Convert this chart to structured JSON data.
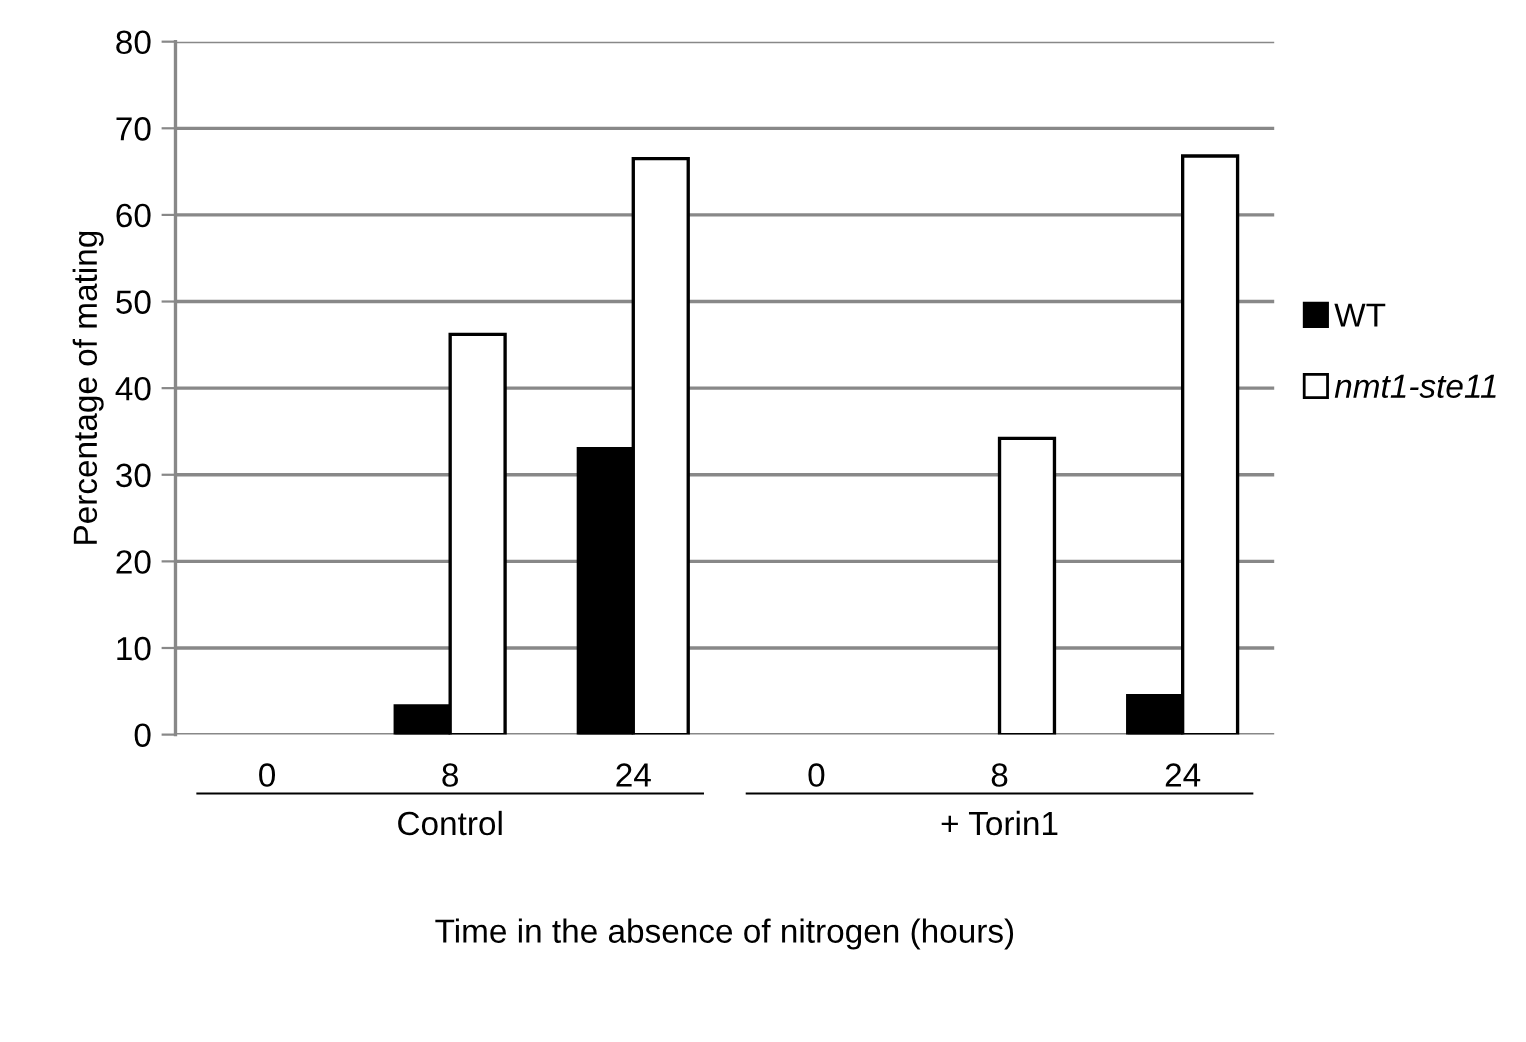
{
  "chart_data": {
    "type": "bar",
    "ylabel": "Percentage of mating",
    "xlabel": "Time in the absence of nitrogen (hours)",
    "categories": [
      "0",
      "8",
      "24",
      "0",
      "8",
      "24"
    ],
    "series": [
      {
        "name": "WT",
        "color": "#000000",
        "values": [
          0,
          3.3,
          33,
          0,
          0,
          4.5
        ]
      },
      {
        "name": "nmt1-ste11",
        "color": "#ffffff",
        "values": [
          0,
          46.2,
          66.5,
          0,
          34.2,
          66.8
        ]
      }
    ],
    "annotations": [
      "Control",
      "+ Torin1"
    ],
    "ylim": [
      0,
      80
    ],
    "yticks": [
      0,
      10,
      20,
      30,
      40,
      50,
      60,
      70,
      80
    ],
    "grid": "y",
    "legend": "right"
  }
}
